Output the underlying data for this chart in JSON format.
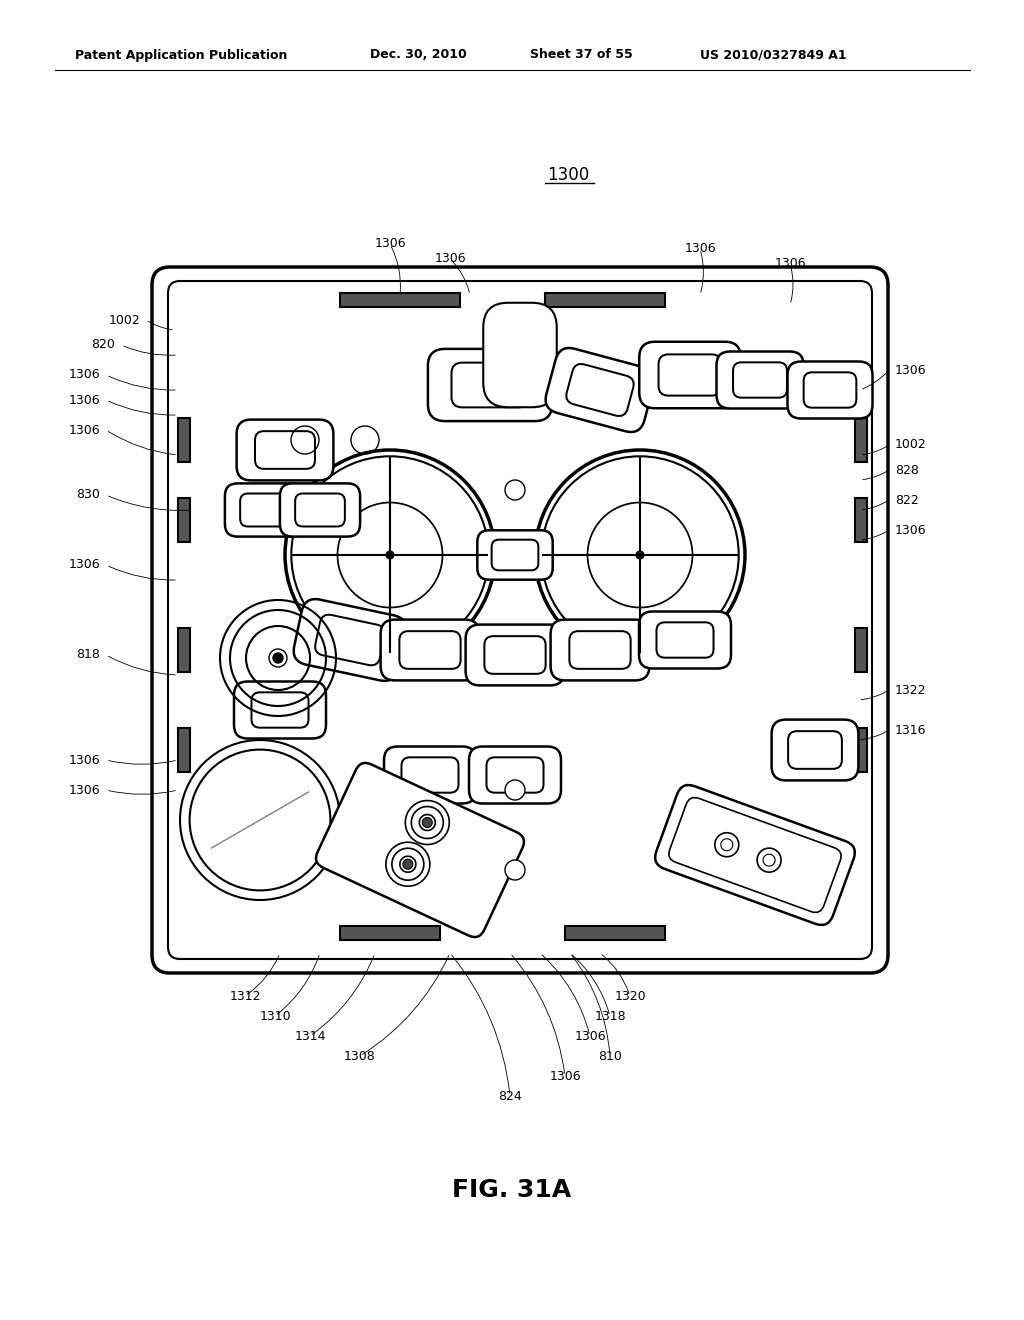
{
  "bg_color": "#ffffff",
  "header_text": "Patent Application Publication",
  "header_date": "Dec. 30, 2010",
  "header_sheet": "Sheet 37 of 55",
  "header_patent": "US 2010/0327849 A1",
  "figure_label": "FIG. 31A",
  "main_label": "1300"
}
